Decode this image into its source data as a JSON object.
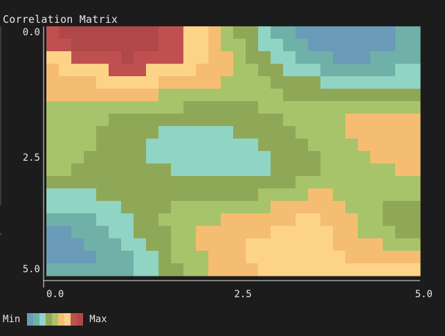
{
  "chart_data": {
    "type": "heatmap",
    "title": "Correlation Matrix",
    "x_ticks": [
      "0.0",
      "2.5",
      "5.0"
    ],
    "y_ticks": [
      "0.0",
      "2.5",
      "5.0"
    ],
    "xlim": [
      0,
      5
    ],
    "ylim": [
      0,
      5
    ],
    "grid": false,
    "legend": {
      "min_label": "Min",
      "max_label": "Max",
      "placement": "bottom-left"
    },
    "colormap": [
      "#6a9bb8",
      "#6fb0a8",
      "#90d4c4",
      "#8fa858",
      "#a8c46a",
      "#f5bd72",
      "#fdd388",
      "#c05050",
      "#b04848"
    ],
    "field": {
      "levels": 9,
      "components": [
        {
          "type": "stripe",
          "dx": 1,
          "dy": -1.6,
          "freq": 1.05,
          "phase": 0.15,
          "amp": 1.0
        },
        {
          "type": "blob",
          "cx": 0.6,
          "cy": 0.5,
          "r": 1.0,
          "amp": 2.2
        },
        {
          "type": "blob",
          "cx": 3.7,
          "cy": 3.7,
          "r": 0.55,
          "amp": 1.6
        },
        {
          "type": "blob",
          "cx": 4.8,
          "cy": 4.8,
          "r": 0.45,
          "amp": 1.2
        },
        {
          "type": "blob",
          "cx": 3.6,
          "cy": 0.5,
          "r": 0.95,
          "amp": -2.3
        },
        {
          "type": "blob",
          "cx": 0.6,
          "cy": 3.8,
          "r": 1.0,
          "amp": -2.2
        }
      ]
    },
    "colorbar_steps": 9
  }
}
